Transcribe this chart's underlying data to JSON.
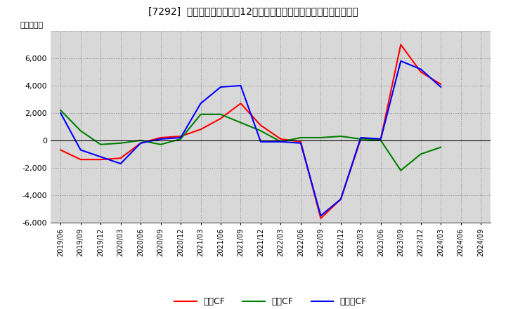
{
  "title": "[7292]  キャッシュフローの12か月移動合計の対前年同期増減額の推移",
  "ylabel": "（百万円）",
  "background_color": "#ffffff",
  "plot_bg_color": "#d8d8d8",
  "x_labels": [
    "2019/06",
    "2019/09",
    "2019/12",
    "2020/03",
    "2020/06",
    "2020/09",
    "2020/12",
    "2021/03",
    "2021/06",
    "2021/09",
    "2021/12",
    "2022/03",
    "2022/06",
    "2022/09",
    "2022/12",
    "2023/03",
    "2023/06",
    "2023/09",
    "2023/12",
    "2024/03",
    "2024/06",
    "2024/09"
  ],
  "operating_cf": [
    -700,
    -1400,
    -1400,
    -1300,
    -200,
    200,
    300,
    800,
    1600,
    2700,
    1100,
    100,
    -100,
    -5700,
    -4300,
    100,
    100,
    7000,
    5000,
    4100,
    null,
    null
  ],
  "investing_cf": [
    2200,
    700,
    -300,
    -200,
    0,
    -300,
    100,
    1900,
    1900,
    1300,
    700,
    -100,
    200,
    200,
    300,
    100,
    0,
    -2200,
    -1000,
    -500,
    null,
    null
  ],
  "free_cf": [
    2000,
    -700,
    -1200,
    -1700,
    -200,
    100,
    200,
    2700,
    3900,
    4000,
    -100,
    -100,
    -200,
    -5500,
    -4300,
    200,
    100,
    5800,
    5200,
    3900,
    null,
    null
  ],
  "ylim": [
    -6000,
    8000
  ],
  "yticks": [
    -6000,
    -4000,
    -2000,
    0,
    2000,
    4000,
    6000,
    8000
  ],
  "line_colors": {
    "operating": "#ff0000",
    "investing": "#008000",
    "free": "#0000ff"
  },
  "legend_labels": {
    "operating": "営業CF",
    "investing": "投資CF",
    "free": "フリーCF"
  }
}
